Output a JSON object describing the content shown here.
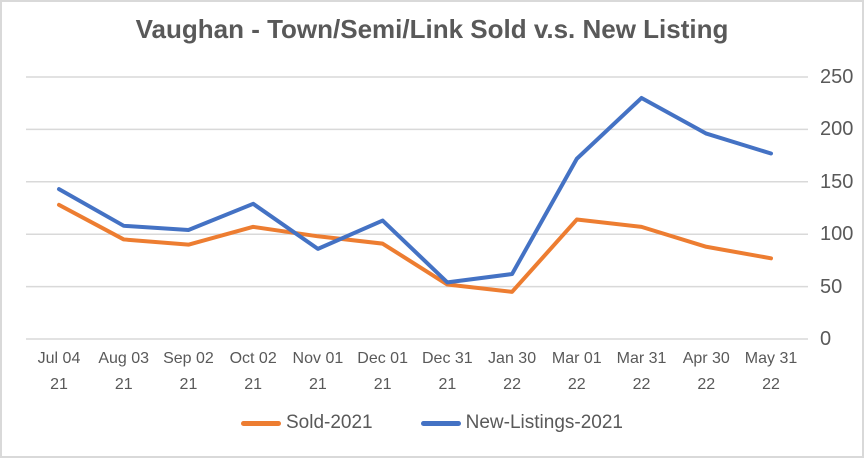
{
  "chart_data": {
    "type": "line",
    "title": "Vaughan - Town/Semi/Link Sold v.s. New Listing",
    "categories": [
      "Jul 04 21",
      "Aug 03 21",
      "Sep 02 21",
      "Oct 02 21",
      "Nov 01 21",
      "Dec 01 21",
      "Dec 31 21",
      "Jan 30 22",
      "Mar 01 22",
      "Mar 31 22",
      "Apr 30 22",
      "May 31 22"
    ],
    "series": [
      {
        "name": "Sold-2021",
        "color": "#ED7D31",
        "values": [
          128,
          95,
          90,
          107,
          98,
          91,
          52,
          45,
          114,
          107,
          88,
          77
        ]
      },
      {
        "name": "New-Listings-2021",
        "color": "#4472C4",
        "values": [
          143,
          108,
          104,
          129,
          86,
          113,
          54,
          62,
          172,
          230,
          196,
          177
        ]
      }
    ],
    "ylim": [
      0,
      250
    ],
    "yticks": [
      0,
      50,
      100,
      150,
      200,
      250
    ],
    "y_axis_side": "right",
    "grid": true,
    "legend_position": "bottom"
  },
  "colors": {
    "text": "#595959",
    "gridline": "#D9D9D9",
    "frame_border": "#D9D9D9",
    "background": "#FFFFFF"
  }
}
